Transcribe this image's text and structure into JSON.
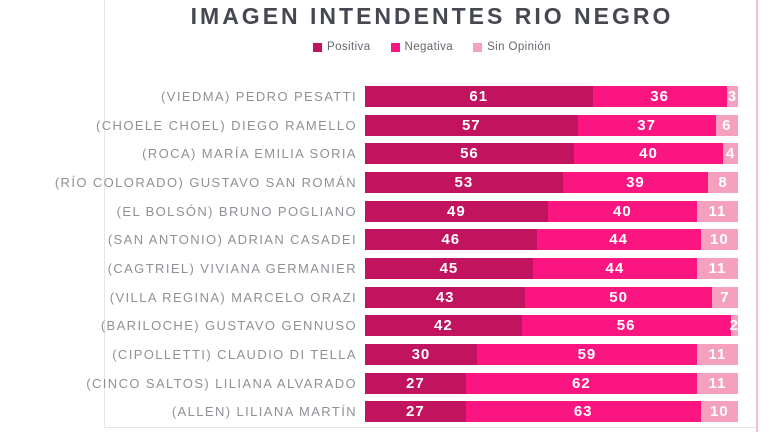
{
  "title": "IMAGEN INTENDENTES RIO NEGRO",
  "colors": {
    "positiva": "#C2135F",
    "negativa": "#FA1581",
    "sin_opinion": "#F4A0BE",
    "title_text": "#454751",
    "label_text": "#8E9196",
    "frame_line": "#E6E6EA",
    "edge_line": "#F3C3D4"
  },
  "chart_data": {
    "type": "bar",
    "orientation": "horizontal",
    "stacked": true,
    "title": "IMAGEN INTENDENTES RIO NEGRO",
    "xlabel": "",
    "ylabel": "",
    "xlim": [
      0,
      100
    ],
    "grid": false,
    "legend_position": "top",
    "value_labels": "inside-white",
    "categories": [
      "(VIEDMA) PEDRO PESATTI",
      "(CHOELE CHOEL) DIEGO RAMELLO",
      "(ROCA) MARÍA EMILIA SORIA",
      "(RÍO COLORADO) GUSTAVO SAN ROMÁN",
      "(EL BOLSÓN) BRUNO POGLIANO",
      "(SAN ANTONIO) ADRIAN CASADEI",
      "(CAGTRIEL) VIVIANA GERMANIER",
      "(VILLA REGINA) MARCELO ORAZI",
      "(BARILOCHE) GUSTAVO GENNUSO",
      "(CIPOLLETTI) CLAUDIO DI TELLA",
      "(CINCO SALTOS) LILIANA ALVARADO",
      "(ALLEN) LILIANA MARTÍN"
    ],
    "series": [
      {
        "name": "Positiva",
        "color": "#C2135F",
        "values": [
          61,
          57,
          56,
          53,
          49,
          46,
          45,
          43,
          42,
          30,
          27,
          27
        ]
      },
      {
        "name": "Negativa",
        "color": "#FA1581",
        "values": [
          36,
          37,
          40,
          39,
          40,
          44,
          44,
          50,
          56,
          59,
          62,
          63
        ]
      },
      {
        "name": "Sin Opinión",
        "color": "#F4A0BE",
        "values": [
          3,
          6,
          4,
          8,
          11,
          10,
          11,
          7,
          2,
          11,
          11,
          10
        ]
      }
    ]
  }
}
